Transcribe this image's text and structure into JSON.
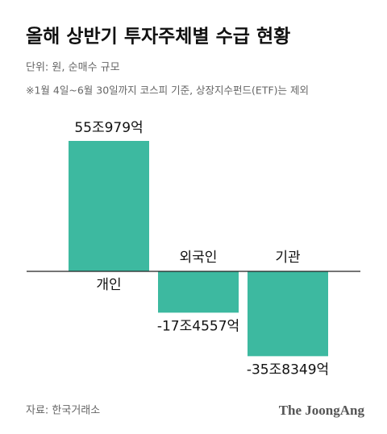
{
  "chart_data": {
    "type": "bar",
    "title": "올해 상반기 투자주체별 수급 현황",
    "subtitle": "단위: 원, 순매수 규모",
    "note": "※1월 4일~6월 30일까지 코스피 기준, 상장지수펀드(ETF)는 제외",
    "categories": [
      "개인",
      "외국인",
      "기관"
    ],
    "values": [
      55097900000000,
      -17455700000000,
      -35834900000000
    ],
    "value_labels": [
      "55조979억",
      "-17조4557억",
      "-35조8349억"
    ],
    "color": "#3db9a0",
    "source": "자료: 한국거래소",
    "brand": "The JoongAng"
  }
}
